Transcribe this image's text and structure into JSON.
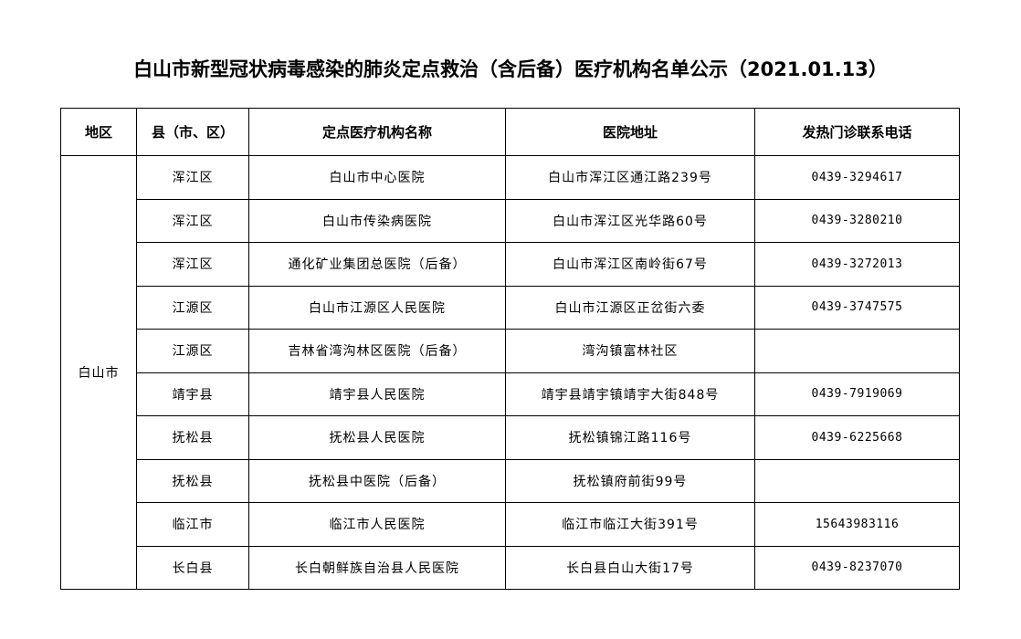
{
  "title": "白山市新型冠状病毒感染的肺炎定点救治（含后备）医疗机构名单公示（2021.01.13）",
  "headers": [
    "地区",
    "县（市、区）",
    "定点医疗机构名称",
    "医院地址",
    "发热门诊联系电话"
  ],
  "region": "白山市",
  "rows": [
    {
      "county": "浑江区",
      "hospital": "白山市中心医院",
      "address": "白山市浑江区通江路239号",
      "phone": "0439-3294617"
    },
    {
      "county": "浑江区",
      "hospital": "白山市传染病医院",
      "address": "白山市浑江区光华路60号",
      "phone": "0439-3280210"
    },
    {
      "county": "浑江区",
      "hospital": "通化矿业集团总医院（后备）",
      "address": "白山市浑江区南岭街67号",
      "phone": "0439-3272013"
    },
    {
      "county": "江源区",
      "hospital": "白山市江源区人民医院",
      "address": "白山市江源区正岔街六委",
      "phone": "0439-3747575"
    },
    {
      "county": "江源区",
      "hospital": "吉林省湾沟林区医院（后备）",
      "address": "湾沟镇富林社区",
      "phone": ""
    },
    {
      "county": "靖宇县",
      "hospital": "靖宇县人民医院",
      "address": "靖宇县靖宇镇靖宇大街848号",
      "phone": "0439-7919069"
    },
    {
      "county": "抚松县",
      "hospital": "抚松县人民医院",
      "address": "抚松镇锦江路116号",
      "phone": "0439-6225668"
    },
    {
      "county": "抚松县",
      "hospital": "抚松县中医院（后备）",
      "address": "抚松镇府前街99号",
      "phone": ""
    },
    {
      "county": "临江市",
      "hospital": "临江市人民医院",
      "address": "临江市临江大街391号",
      "phone": "15643983116"
    },
    {
      "county": "长白县",
      "hospital": "长白朝鲜族自治县人民医院",
      "address": "长白县白山大街17号",
      "phone": "0439-8237070"
    }
  ]
}
